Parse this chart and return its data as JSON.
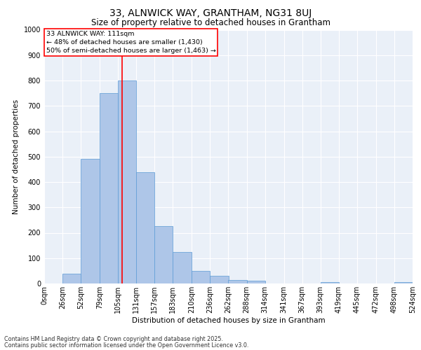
{
  "title1": "33, ALNWICK WAY, GRANTHAM, NG31 8UJ",
  "title2": "Size of property relative to detached houses in Grantham",
  "xlabel": "Distribution of detached houses by size in Grantham",
  "ylabel": "Number of detached properties",
  "bin_edges": [
    0,
    26,
    52,
    79,
    105,
    131,
    157,
    183,
    210,
    236,
    262,
    288,
    314,
    341,
    367,
    393,
    419,
    445,
    472,
    498,
    524
  ],
  "bar_heights": [
    0,
    40,
    490,
    750,
    800,
    440,
    225,
    125,
    50,
    30,
    15,
    10,
    0,
    0,
    0,
    5,
    0,
    0,
    0,
    5
  ],
  "bar_color": "#aec6e8",
  "bar_edge_color": "#5b9bd5",
  "red_line_x": 111,
  "ylim": [
    0,
    1000
  ],
  "yticks": [
    0,
    100,
    200,
    300,
    400,
    500,
    600,
    700,
    800,
    900,
    1000
  ],
  "annotation_title": "33 ALNWICK WAY: 111sqm",
  "annotation_line1": "← 48% of detached houses are smaller (1,430)",
  "annotation_line2": "50% of semi-detached houses are larger (1,463) →",
  "footnote1": "Contains HM Land Registry data © Crown copyright and database right 2025.",
  "footnote2": "Contains public sector information licensed under the Open Government Licence v3.0.",
  "bg_color": "#eaf0f8",
  "grid_color": "#ffffff",
  "title1_fontsize": 10,
  "title2_fontsize": 8.5,
  "axis_label_fontsize": 7,
  "tick_fontsize": 7,
  "annotation_fontsize": 6.8,
  "footnote_fontsize": 5.8
}
